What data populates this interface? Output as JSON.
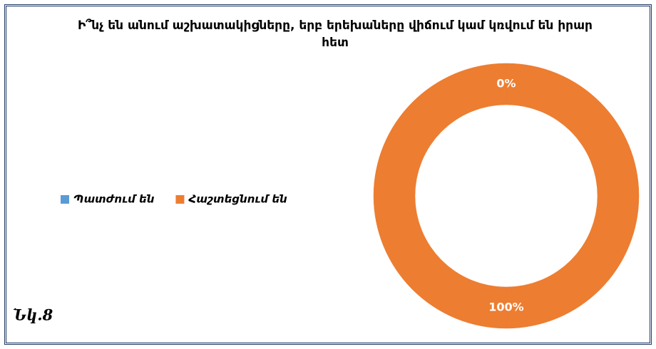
{
  "chart_data": {
    "type": "donut",
    "title": "Ի՞նչ են անում աշխատակիցները, երբ երեխաները վիճում կամ կռվում են իրար հետ",
    "categories": [
      "Պատժում են",
      "Հաշտեցնում են"
    ],
    "values": [
      0,
      100
    ],
    "value_labels": [
      "0%",
      "100%"
    ],
    "colors": [
      "#5b9bd5",
      "#ed7d31"
    ],
    "legend": "left"
  },
  "caption": "Նկ.8"
}
